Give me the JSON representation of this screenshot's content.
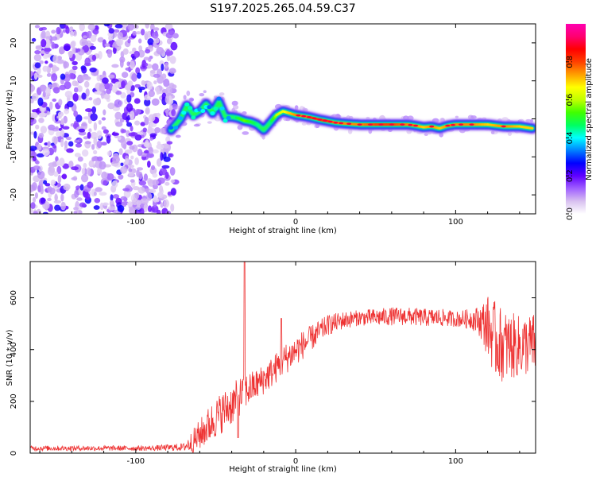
{
  "title": "S197.2025.265.04.59.C37",
  "chart_data": [
    {
      "type": "heatmap",
      "xlabel": "Height of straight line (km)",
      "ylabel": "Frequency (Hz)",
      "xlim": [
        -166,
        150
      ],
      "ylim": [
        -25,
        25
      ],
      "xticks": [
        -100,
        0,
        100
      ],
      "yticks": [
        -20,
        -10,
        0,
        10,
        20
      ],
      "colorbar": {
        "label": "Normalized spectral amplitude",
        "ticks": [
          0.0,
          0.2,
          0.4,
          0.6,
          0.8
        ],
        "range": [
          0,
          1
        ],
        "colors": [
          "#ffffff",
          "#d8c0f0",
          "#a060ff",
          "#6000ff",
          "#0000ff",
          "#0080ff",
          "#00ffff",
          "#00ff60",
          "#40ff00",
          "#c0ff00",
          "#ffff00",
          "#ffa000",
          "#ff4000",
          "#ff0000",
          "#ff0070",
          "#ff00b0"
        ]
      },
      "noise_region": {
        "x_start": -166,
        "x_end": -75,
        "level": 0.2
      },
      "ridge": {
        "x": [
          -78,
          -72,
          -68,
          -64,
          -60,
          -56,
          -52,
          -48,
          -44,
          -40,
          -36,
          -32,
          -28,
          -24,
          -20,
          -16,
          -12,
          -8,
          -4,
          0,
          5,
          10,
          15,
          20,
          25,
          30,
          40,
          50,
          60,
          70,
          75,
          80,
          85,
          90,
          95,
          100,
          110,
          120,
          130,
          140,
          148
        ],
        "freq": [
          -3.0,
          0.0,
          3.5,
          1.0,
          2.0,
          4.0,
          1.5,
          4.5,
          0.5,
          0.5,
          0.2,
          -0.5,
          -0.8,
          -1.5,
          -3.0,
          -1.0,
          1.0,
          2.0,
          1.5,
          1.0,
          0.7,
          0.3,
          -0.2,
          -0.6,
          -1.0,
          -1.2,
          -1.5,
          -1.5,
          -1.5,
          -1.5,
          -1.8,
          -2.2,
          -2.0,
          -2.5,
          -1.8,
          -1.5,
          -1.5,
          -1.5,
          -2.0,
          -2.0,
          -2.5
        ],
        "amp": [
          0.25,
          0.3,
          0.35,
          0.3,
          0.35,
          0.4,
          0.35,
          0.4,
          0.3,
          0.5,
          0.6,
          0.65,
          0.6,
          0.55,
          0.5,
          0.55,
          0.7,
          0.75,
          0.8,
          0.85,
          0.85,
          0.9,
          0.9,
          0.9,
          0.85,
          0.85,
          0.85,
          0.9,
          0.9,
          0.85,
          0.85,
          0.8,
          0.85,
          0.8,
          0.85,
          0.85,
          0.85,
          0.8,
          0.85,
          0.8,
          0.8
        ]
      }
    },
    {
      "type": "line",
      "xlabel": "Height of straight line (km)",
      "ylabel": "SNR (10 * v/v)",
      "xlim": [
        -166,
        150
      ],
      "ylim": [
        0,
        740
      ],
      "xticks": [
        -100,
        0,
        100
      ],
      "yticks": [
        0,
        200,
        400,
        600
      ],
      "color": "#ee3333",
      "envelope": {
        "x": [
          -166,
          -120,
          -90,
          -70,
          -64,
          -56,
          -48,
          -40,
          -32,
          -24,
          -16,
          -8,
          0,
          10,
          20,
          30,
          40,
          50,
          60,
          70,
          80,
          90,
          100,
          110,
          115,
          120,
          125,
          130,
          140,
          150
        ],
        "base": [
          18,
          18,
          18,
          22,
          40,
          90,
          140,
          180,
          230,
          260,
          300,
          350,
          390,
          440,
          490,
          510,
          520,
          520,
          525,
          525,
          520,
          520,
          515,
          515,
          505,
          480,
          420,
          400,
          400,
          410
        ],
        "amp": [
          10,
          10,
          10,
          15,
          50,
          70,
          80,
          80,
          70,
          60,
          60,
          60,
          60,
          50,
          40,
          35,
          30,
          35,
          35,
          35,
          35,
          35,
          30,
          40,
          60,
          120,
          150,
          140,
          120,
          120
        ]
      },
      "spikes": [
        {
          "x": -32,
          "y": 740
        },
        {
          "x": -9,
          "y": 520
        },
        {
          "x": -36,
          "y": 60
        }
      ]
    }
  ]
}
